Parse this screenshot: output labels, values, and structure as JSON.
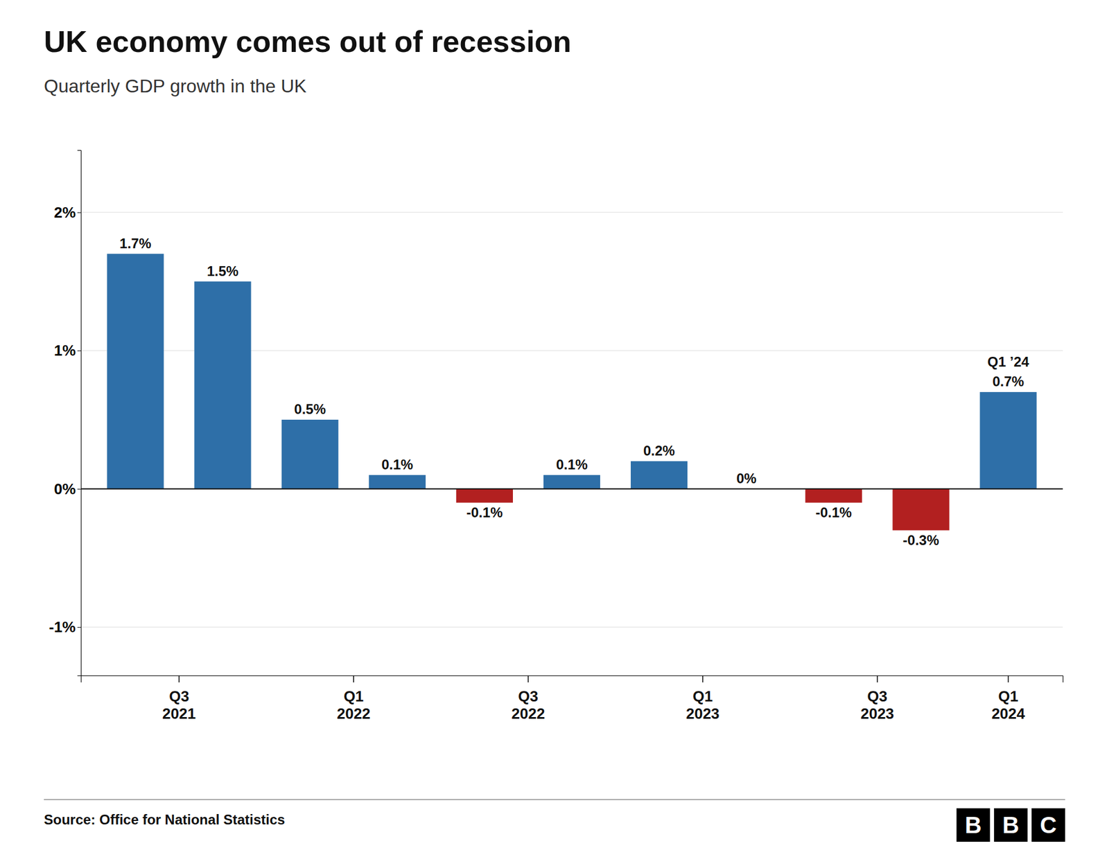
{
  "chart_data": {
    "type": "bar",
    "title": "UK economy comes out of recession",
    "subtitle": "Quarterly GDP growth in the UK",
    "source": "Source: Office for National Statistics",
    "logo": "BBC",
    "annotations": [
      "Q1 ’24"
    ],
    "categories": [
      "Q3\n2021",
      null,
      "Q1\n2022",
      null,
      "Q3\n2022",
      null,
      "Q1\n2023",
      null,
      "Q3\n2023",
      null,
      "Q1\n2024"
    ],
    "values": [
      1.7,
      1.5,
      0.5,
      0.1,
      -0.1,
      0.1,
      0.2,
      0.0,
      -0.1,
      -0.3,
      0.7
    ],
    "value_labels": [
      "1.7%",
      "1.5%",
      "0.5%",
      "0.1%",
      "-0.1%",
      "0.1%",
      "0.2%",
      "0%",
      "-0.1%",
      "-0.3%",
      "0.7%"
    ],
    "colors": [
      "#2e6fa8",
      "#2e6fa8",
      "#2e6fa8",
      "#2e6fa8",
      "#b22020",
      "#2e6fa8",
      "#2e6fa8",
      "#2e6fa8",
      "#b22020",
      "#b22020",
      "#2e6fa8"
    ],
    "data_labels": true,
    "ylim": [
      -1.35,
      2.45
    ],
    "yticks": [
      {
        "value": -1.0,
        "label": "-1%"
      },
      {
        "value": 0.0,
        "label": "0%"
      },
      {
        "value": 1.0,
        "label": "1%"
      },
      {
        "value": 2.0,
        "label": "2%"
      }
    ],
    "grid": true
  }
}
